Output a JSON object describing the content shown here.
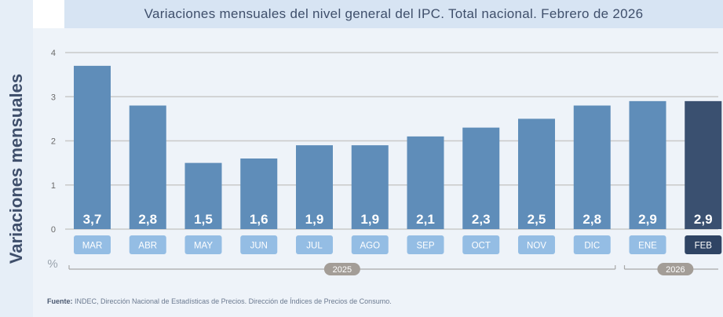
{
  "ylabel_vertical": "Variaciones mensuales",
  "source_label": "Fuente:",
  "source_text": "INDEC, Dirección Nacional de Estadísticas de Precios. Dirección de Índices de Precios de Consumo.",
  "colors": {
    "bar": "#5f8db9",
    "bar_highlight": "#3a5070",
    "label_box": "#94bde4",
    "label_box_highlight": "#2f4464",
    "year_badge": "#a39d97",
    "grid": "#c9c9c9",
    "axis_text": "#6a6a6a"
  },
  "chart_data": {
    "type": "bar",
    "title": "Variaciones mensuales del nivel general del IPC. Total nacional. Febrero de 2026",
    "ylabel": "%",
    "xlabel": "",
    "ylim": [
      0,
      4
    ],
    "yticks": [
      0,
      1,
      2,
      3,
      4
    ],
    "grid": true,
    "categories": [
      "MAR",
      "ABR",
      "MAY",
      "JUN",
      "JUL",
      "AGO",
      "SEP",
      "OCT",
      "NOV",
      "DIC",
      "ENE",
      "FEB"
    ],
    "values": [
      3.7,
      2.8,
      1.5,
      1.6,
      1.9,
      1.9,
      2.1,
      2.3,
      2.5,
      2.8,
      2.9,
      2.9
    ],
    "value_labels": [
      "3,7",
      "2,8",
      "1,5",
      "1,6",
      "1,9",
      "1,9",
      "2,1",
      "2,3",
      "2,5",
      "2,8",
      "2,9",
      "2,9"
    ],
    "highlight_index": 11,
    "year_groups": [
      {
        "label": "2025",
        "start": 0,
        "end": 9
      },
      {
        "label": "2026",
        "start": 10,
        "end": 11
      }
    ]
  }
}
